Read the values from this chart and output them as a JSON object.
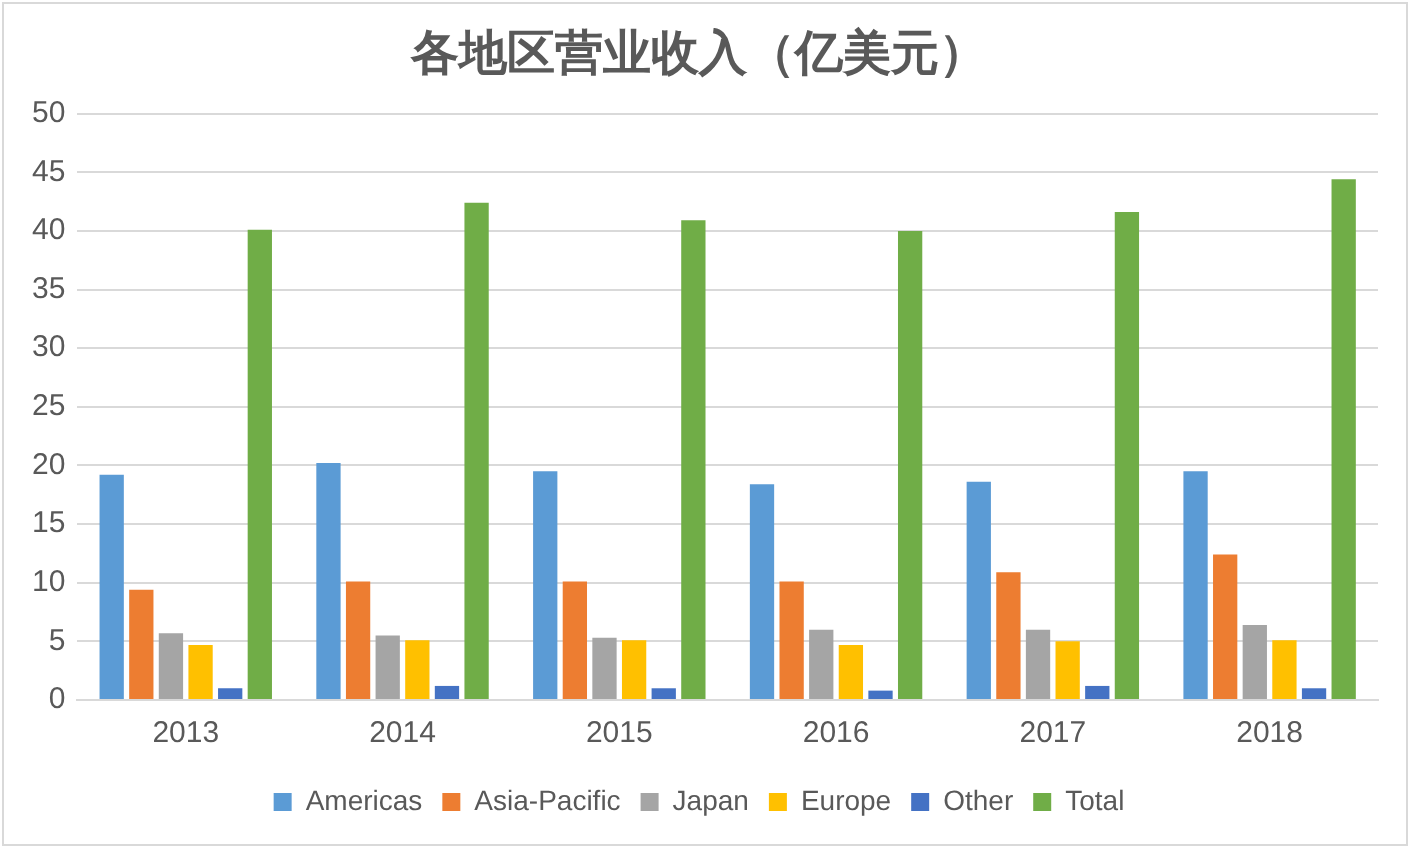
{
  "chart_data": {
    "type": "bar",
    "title": "各地区营业收入（亿美元）",
    "categories": [
      "2013",
      "2014",
      "2015",
      "2016",
      "2017",
      "2018"
    ],
    "series": [
      {
        "name": "Americas",
        "color": "#5b9bd5",
        "values": [
          19.2,
          20.2,
          19.5,
          18.4,
          18.6,
          19.5
        ]
      },
      {
        "name": "Asia-Pacific",
        "color": "#ed7d31",
        "values": [
          9.4,
          10.1,
          10.1,
          10.1,
          10.9,
          12.4
        ]
      },
      {
        "name": "Japan",
        "color": "#a5a5a5",
        "values": [
          5.7,
          5.5,
          5.3,
          6.0,
          6.0,
          6.4
        ]
      },
      {
        "name": "Europe",
        "color": "#ffc000",
        "values": [
          4.7,
          5.1,
          5.1,
          4.7,
          5.0,
          5.1
        ]
      },
      {
        "name": "Other",
        "color": "#4472c4",
        "values": [
          1.0,
          1.2,
          1.0,
          0.8,
          1.2,
          1.0
        ]
      },
      {
        "name": "Total",
        "color": "#70ad47",
        "values": [
          40.1,
          42.4,
          40.9,
          40.0,
          41.6,
          44.4
        ]
      }
    ],
    "ylim": [
      0,
      50
    ],
    "yticks": [
      0,
      5,
      10,
      15,
      20,
      25,
      30,
      35,
      40,
      45,
      50
    ],
    "grid": "y",
    "legend": "bottom"
  }
}
